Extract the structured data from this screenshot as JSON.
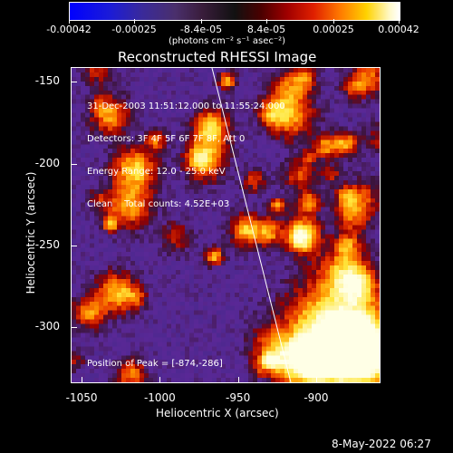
{
  "colorbar": {
    "ticks": [
      "-0.00042",
      "-0.00025",
      "-8.4e-05",
      "8.4e-05",
      "0.00025",
      "0.00042"
    ],
    "units": "(photons cm⁻² s⁻¹ asec⁻²)"
  },
  "plot": {
    "title": "Reconstructed RHESSI Image",
    "info_lines": [
      "31-Dec-2003 11:51:12.000 to 11:55:24.000",
      "Detectors: 3F 4F 5F 6F 7F 8F, Att 0",
      "Energy Range: 12.0 - 25.0 keV",
      "Clean    Total counts: 4.52E+03"
    ],
    "peak_label": "Position of Peak = [-874,-286]",
    "x_axis": {
      "title": "Heliocentric X (arcsec)",
      "ticks": [
        "-1050",
        "-1000",
        "-950",
        "-900"
      ],
      "range": [
        -1057,
        -860
      ]
    },
    "y_axis": {
      "title": "Heliocentric Y (arcsec)",
      "ticks": [
        "-150",
        "-200",
        "-250",
        "-300"
      ],
      "range": [
        -333,
        -141
      ]
    }
  },
  "footer": {
    "date": "8-May-2022 06:27"
  }
}
